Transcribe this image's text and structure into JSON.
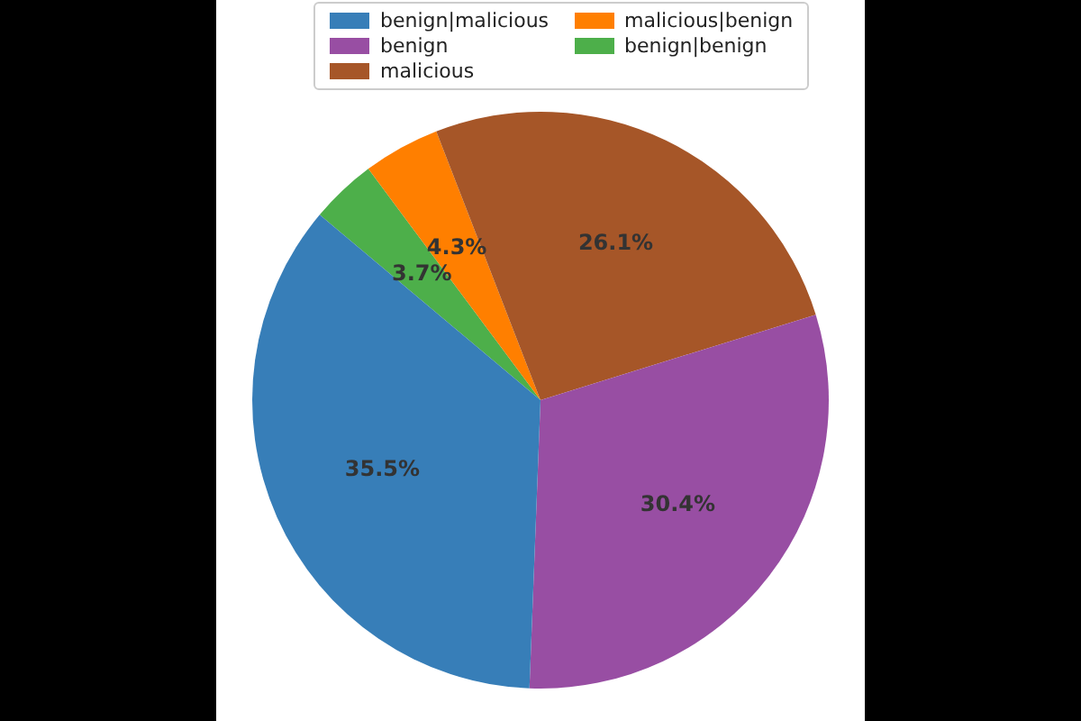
{
  "chart_data": {
    "type": "pie",
    "categories": [
      "benign|malicious",
      "benign",
      "malicious",
      "malicious|benign",
      "benign|benign"
    ],
    "values": [
      35.5,
      30.4,
      26.1,
      4.3,
      3.7
    ],
    "value_labels": [
      "35.5%",
      "30.4%",
      "26.1%",
      "4.3%",
      "3.7%"
    ],
    "colors": [
      "#377eb8",
      "#984ea3",
      "#a65628",
      "#ff7f00",
      "#4daf4a"
    ],
    "legend": "top"
  }
}
